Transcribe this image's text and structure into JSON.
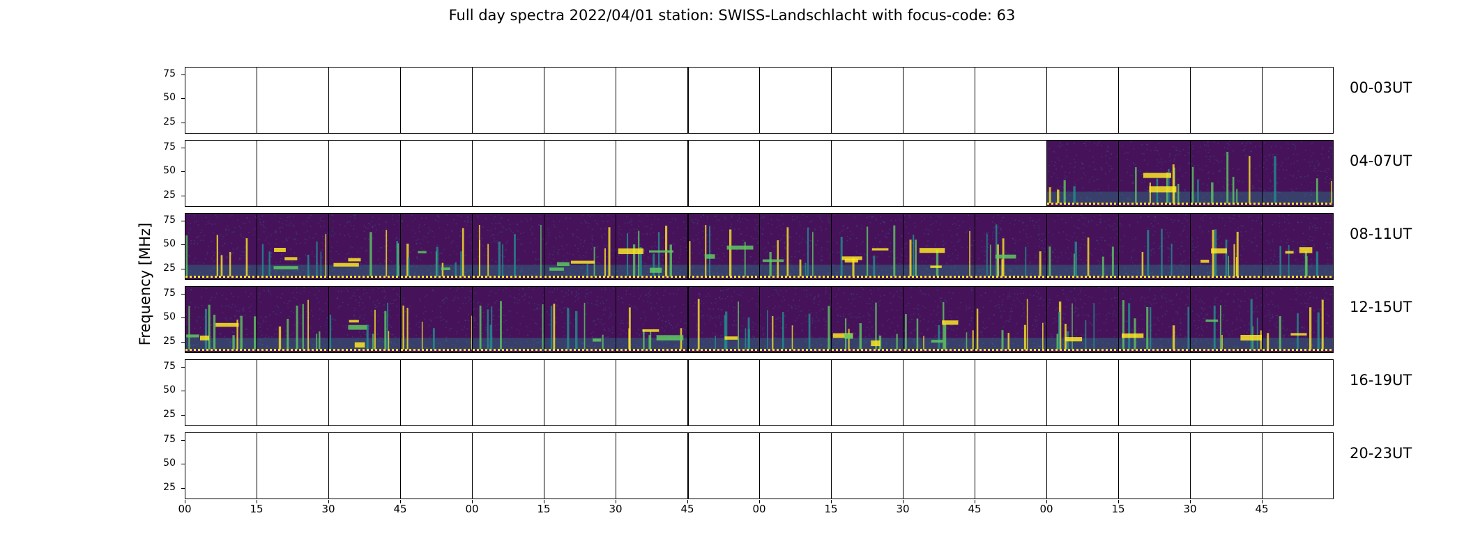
{
  "chart_data": {
    "type": "heatmap",
    "title": "Full day spectra 2022/04/01 station: SWISS-Landschlacht with focus-code: 63",
    "ylabel": "Frequency [MHz]",
    "xlabel": "",
    "yticks": [
      "75",
      "50",
      "25"
    ],
    "xticks": [
      "00",
      "15",
      "30",
      "45",
      "00",
      "15",
      "30",
      "45",
      "00",
      "15",
      "30",
      "45",
      "00",
      "15",
      "30",
      "45"
    ],
    "panels_per_row": 16,
    "rows": [
      {
        "label": "00-03UT",
        "data_panels": []
      },
      {
        "label": "04-07UT",
        "data_panels": [
          12,
          13,
          14,
          15
        ]
      },
      {
        "label": "08-11UT",
        "data_panels": [
          0,
          1,
          2,
          3,
          4,
          5,
          6,
          7,
          8,
          9,
          10,
          11,
          12,
          13,
          14,
          15
        ]
      },
      {
        "label": "12-15UT",
        "data_panels": [
          0,
          1,
          2,
          3,
          4,
          5,
          6,
          7,
          8,
          9,
          10,
          11,
          12,
          13,
          14,
          15
        ]
      },
      {
        "label": "16-19UT",
        "data_panels": []
      },
      {
        "label": "20-23UT",
        "data_panels": []
      }
    ],
    "colormap": [
      "#440154",
      "#3b528b",
      "#21918c",
      "#5ec962",
      "#fde725"
    ],
    "background_color": "#46135a"
  }
}
